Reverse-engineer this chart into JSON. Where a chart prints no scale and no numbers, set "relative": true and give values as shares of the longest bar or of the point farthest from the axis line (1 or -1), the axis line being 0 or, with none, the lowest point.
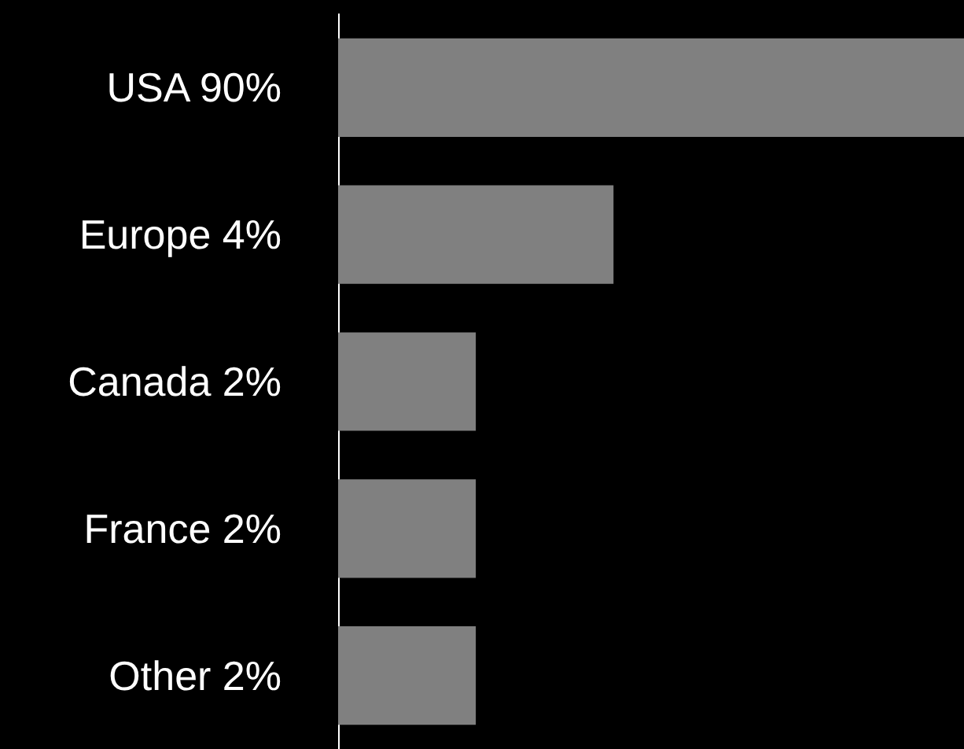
{
  "chart_data": {
    "type": "bar",
    "orientation": "horizontal",
    "relative": true,
    "categories": [
      "USA 90%",
      "Europe 4%",
      "Canada 2%",
      "France 2%",
      "Other 2%"
    ],
    "values": [
      1,
      0.44,
      0.22,
      0.22,
      0.22
    ],
    "color": "#808080"
  }
}
